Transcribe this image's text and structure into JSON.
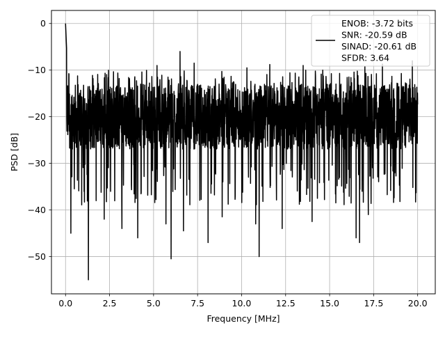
{
  "chart_data": {
    "type": "line",
    "xlabel": "Frequency [MHz]",
    "ylabel": "PSD [dB]",
    "xlim": [
      -0.8,
      21.0
    ],
    "ylim": [
      -58.0,
      2.8
    ],
    "x_ticks": [
      0.0,
      2.5,
      5.0,
      7.5,
      10.0,
      12.5,
      15.0,
      17.5,
      20.0
    ],
    "x_tick_labels": [
      "0.0",
      "2.5",
      "5.0",
      "7.5",
      "10.0",
      "12.5",
      "15.0",
      "17.5",
      "20.0"
    ],
    "y_ticks": [
      0,
      -10,
      -20,
      -30,
      -40,
      -50
    ],
    "y_tick_labels": [
      "0",
      "−10",
      "−20",
      "−30",
      "−40",
      "−50"
    ],
    "grid": true,
    "legend_position": "top-right",
    "series": [
      {
        "name": "ENOB: -3.72 bits\nSNR: -20.59 dB\nSINAD: -20.61 dB\nSFDR: 3.64",
        "color": "#000000",
        "x_range": [
          0.0,
          20.0
        ],
        "noise_band_db": [
          -30.0,
          -10.0
        ],
        "peak": {
          "x": 0.0,
          "y": 0.0
        },
        "deep_dips": [
          {
            "x": 0.3,
            "y": -45.0
          },
          {
            "x": 1.3,
            "y": -55.0
          },
          {
            "x": 2.2,
            "y": -42.0
          },
          {
            "x": 3.2,
            "y": -44.0
          },
          {
            "x": 4.1,
            "y": -46.0
          },
          {
            "x": 5.7,
            "y": -43.0
          },
          {
            "x": 6.0,
            "y": -50.5
          },
          {
            "x": 6.7,
            "y": -44.5
          },
          {
            "x": 8.1,
            "y": -47.0
          },
          {
            "x": 8.9,
            "y": -41.5
          },
          {
            "x": 10.8,
            "y": -43.0
          },
          {
            "x": 11.0,
            "y": -50.0
          },
          {
            "x": 12.3,
            "y": -44.0
          },
          {
            "x": 14.0,
            "y": -42.5
          },
          {
            "x": 16.5,
            "y": -46.0
          },
          {
            "x": 16.7,
            "y": -47.0
          },
          {
            "x": 17.2,
            "y": -41.0
          },
          {
            "x": 19.7,
            "y": -40.5
          }
        ],
        "high_peaks": [
          {
            "x": 5.2,
            "y": -9.0
          },
          {
            "x": 6.5,
            "y": -6.0
          },
          {
            "x": 7.3,
            "y": -8.5
          },
          {
            "x": 10.3,
            "y": -9.5
          },
          {
            "x": 11.6,
            "y": -8.8
          },
          {
            "x": 13.5,
            "y": -9.0
          },
          {
            "x": 17.0,
            "y": -9.2
          },
          {
            "x": 18.0,
            "y": -8.7
          },
          {
            "x": 19.7,
            "y": -8.0
          }
        ]
      }
    ]
  }
}
